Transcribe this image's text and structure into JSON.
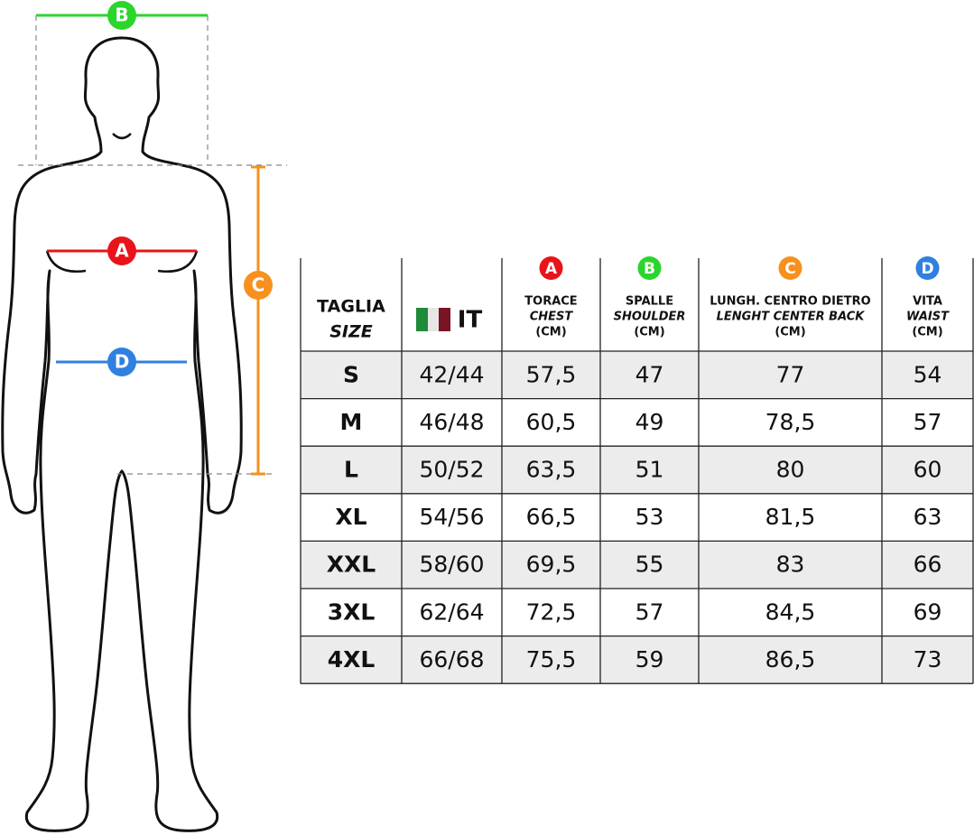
{
  "figure": {
    "markers": [
      {
        "letter": "B",
        "color": "#2bd52b"
      },
      {
        "letter": "A",
        "color": "#e8141a"
      },
      {
        "letter": "C",
        "color": "#f7901e"
      },
      {
        "letter": "D",
        "color": "#2f80e0"
      }
    ]
  },
  "table": {
    "columns": [
      {
        "title": "TAGLIA",
        "subtitle": "SIZE"
      },
      {
        "title": "IT"
      },
      {
        "marker": "A",
        "color": "#e8141a",
        "title": "TORACE",
        "subtitle": "CHEST",
        "unit": "(CM)"
      },
      {
        "marker": "B",
        "color": "#2bd52b",
        "title": "SPALLE",
        "subtitle": "SHOULDER",
        "unit": "(CM)"
      },
      {
        "marker": "C",
        "color": "#f7901e",
        "title": "LUNGH. CENTRO DIETRO",
        "subtitle": "LENGHT CENTER BACK",
        "unit": "(CM)"
      },
      {
        "marker": "D",
        "color": "#2f80e0",
        "title": "VITA",
        "subtitle": "WAIST",
        "unit": "(CM)"
      }
    ],
    "rows": [
      [
        "S",
        "42/44",
        "57,5",
        "47",
        "77",
        "54"
      ],
      [
        "M",
        "46/48",
        "60,5",
        "49",
        "78,5",
        "57"
      ],
      [
        "L",
        "50/52",
        "63,5",
        "51",
        "80",
        "60"
      ],
      [
        "XL",
        "54/56",
        "66,5",
        "53",
        "81,5",
        "63"
      ],
      [
        "XXL",
        "58/60",
        "69,5",
        "55",
        "83",
        "66"
      ],
      [
        "3XL",
        "62/64",
        "72,5",
        "57",
        "84,5",
        "69"
      ],
      [
        "4XL",
        "66/68",
        "75,5",
        "59",
        "86,5",
        "73"
      ]
    ]
  }
}
